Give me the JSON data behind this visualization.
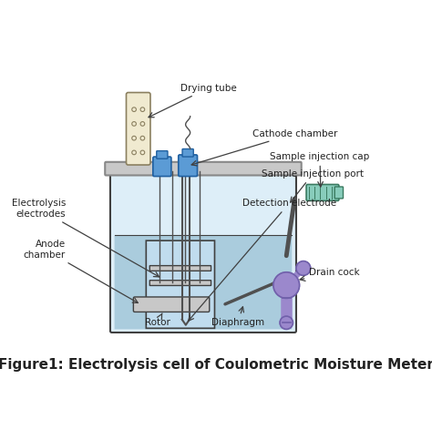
{
  "title": "Figure1: Electrolysis cell of Coulometric Moisture Meter",
  "title_fontsize": 11,
  "bg_color": "#ffffff",
  "labels": {
    "drying_tube": "Drying tube",
    "cathode_chamber": "Cathode chamber",
    "sample_injection_cap": "Sample injection cap",
    "sample_injection_port": "Sample injection port",
    "detection_electrode": "Detection electrode",
    "drain_cock": "Drain cock",
    "electrolysis_electrodes": "Electrolysis\nelectrodes",
    "anode_chamber": "Anode\nchamber",
    "rotor": "Rotor",
    "diaphragm": "Diaphragm"
  },
  "colors": {
    "vessel_outline": "#404040",
    "vessel_fill": "#ddeef8",
    "liquid_fill": "#aaccdd",
    "lid_fill": "#c8c8c8",
    "lid_outline": "#888888",
    "drying_tube_fill": "#f0ead0",
    "drying_tube_outline": "#8B8060",
    "blue_component": "#5b9bd5",
    "cathode_tube_fill": "#5b9bd5",
    "injection_cap_fill": "#88ccbb",
    "drain_cock_fill": "#9b88cc",
    "text_color": "#222222",
    "arrow_color": "#404040",
    "inner_vessel_fill": "#c0dcee",
    "electrode_fill": "#c8c8c8",
    "rotor_fill": "#a0a0a0",
    "drain_outline": "#7060aa"
  },
  "figsize": [
    4.74,
    4.83
  ],
  "dpi": 100
}
